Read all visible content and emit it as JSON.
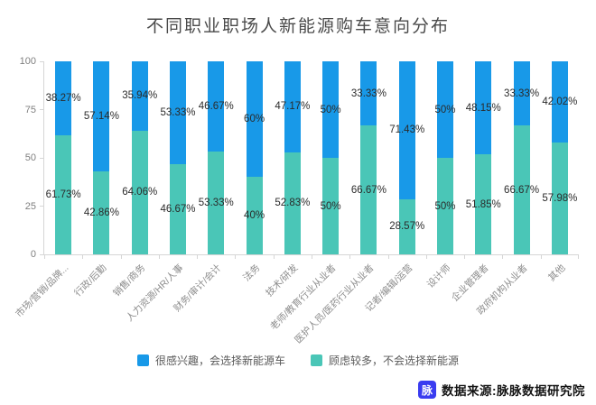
{
  "title": "不同职业职场人新能源购车意向分布",
  "chart_data": {
    "type": "bar",
    "stacked": true,
    "title": "不同职业职场人新能源购车意向分布",
    "xlabel": "",
    "ylabel": "",
    "ylim": [
      0,
      100
    ],
    "yticks": [
      100,
      75,
      50,
      25,
      0
    ],
    "ytick_labels": [
      "100",
      "75",
      "50",
      "25",
      "0"
    ],
    "grid": false,
    "legend_position": "bottom",
    "value_label_format": "percent",
    "categories": [
      "市场/营销/品牌...",
      "行政/后勤",
      "销售/商务",
      "人力资源/HR/人事",
      "财务/审计/会计",
      "法务",
      "技术/研发",
      "老师/教育行业从业者",
      "医护人员/医药行业从业者",
      "记者/编辑/运营",
      "设计师",
      "企业管理者",
      "政府机构从业者",
      "其他"
    ],
    "series": [
      {
        "name": "很感兴趣，会选择新能源车",
        "color": "#1899e8",
        "position": "top",
        "values": [
          38.27,
          57.14,
          35.94,
          53.33,
          46.67,
          60,
          47.17,
          50,
          33.33,
          71.43,
          50,
          48.15,
          33.33,
          42.02
        ],
        "labels": [
          "38.27%",
          "57.14%",
          "35.94%",
          "53.33%",
          "46.67%",
          "60%",
          "47.17%",
          "50%",
          "33.33%",
          "71.43%",
          "50%",
          "48.15%",
          "33.33%",
          "42.02%"
        ]
      },
      {
        "name": "顾虑较多，不会选择新能源",
        "color": "#4ac6b7",
        "position": "bottom",
        "values": [
          61.73,
          42.86,
          64.06,
          46.67,
          53.33,
          40,
          52.83,
          50,
          66.67,
          28.57,
          50,
          51.85,
          66.67,
          57.98
        ],
        "labels": [
          "61.73%",
          "42.86%",
          "64.06%",
          "46.67%",
          "53.33%",
          "40%",
          "52.83%",
          "50%",
          "66.67%",
          "28.57%",
          "50%",
          "51.85%",
          "66.67%",
          "57.98%"
        ]
      }
    ]
  },
  "source": {
    "badge": "脉",
    "badge_color": "#3a3cf0",
    "text": "数据来源:脉脉数据研究院"
  }
}
